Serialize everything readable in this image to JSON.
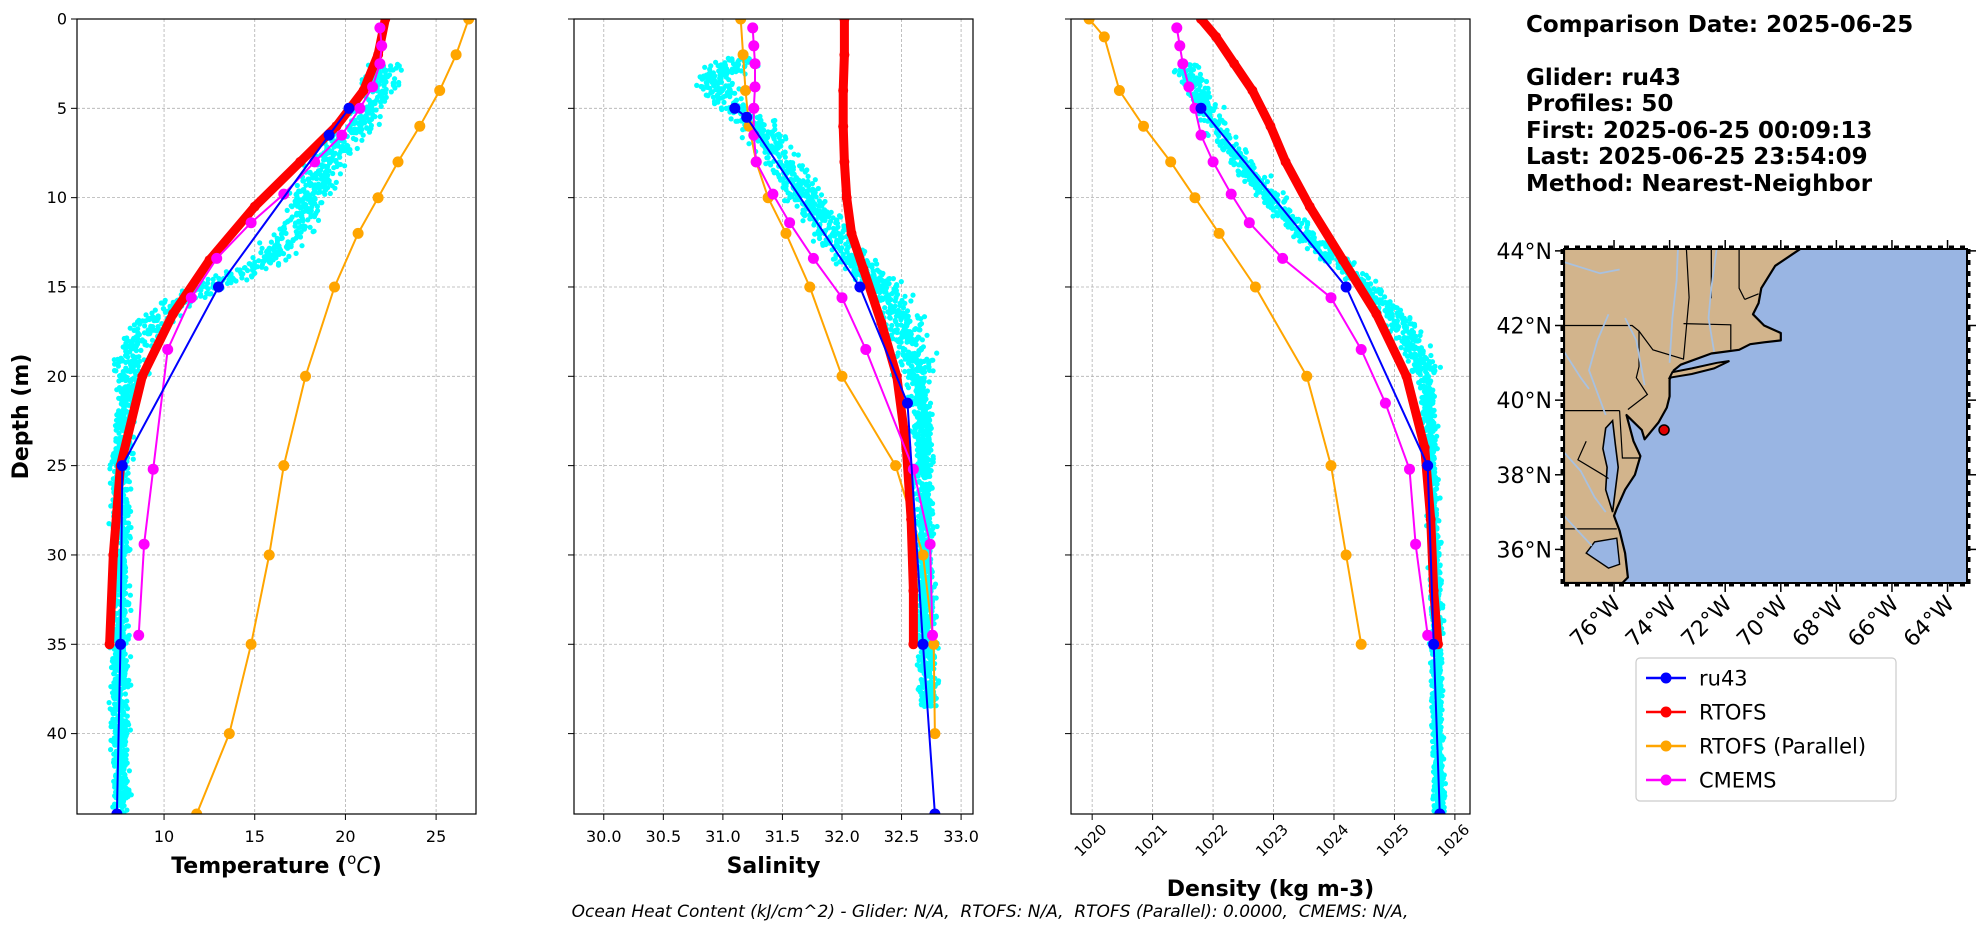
{
  "info": {
    "comparison_date": "Comparison Date: 2025-06-25",
    "glider": "Glider: ru43",
    "profiles": "Profiles: 50",
    "first": "First: 2025-06-25 00:09:13",
    "last": "Last: 2025-06-25 23:54:09",
    "method": "Method: Nearest-Neighbor"
  },
  "footer": "Ocean Heat Content (kJ/cm^2) - Glider: N/A,  RTOFS: N/A,  RTOFS (Parallel): 0.0000,  CMEMS: N/A,",
  "colors": {
    "glider_scatter": "#00ffff",
    "ru43": "#0000ff",
    "RTOFS": "#ff0000",
    "RTOFS (Parallel)": "#ffa500",
    "CMEMS": "#ff00ff",
    "land": "#d2b48c",
    "ocean": "#99b5e3",
    "rivers": "#a8c1e0"
  },
  "chart_data": [
    {
      "type": "line",
      "xlabel": "Temperature (°C)",
      "ylabel": "Depth (m)",
      "xlim": [
        5.2,
        27.2
      ],
      "ylim": [
        44.5,
        0
      ],
      "xticks": [
        10,
        15,
        20,
        25
      ],
      "yticks": [
        0,
        5,
        10,
        15,
        20,
        25,
        30,
        35,
        40
      ],
      "grid": true,
      "scatter_depth_range": [
        2.5,
        44.5
      ],
      "scatter": [
        [
          22.2,
          3
        ],
        [
          21.8,
          4
        ],
        [
          21.2,
          5
        ],
        [
          20.6,
          6
        ],
        [
          19.8,
          7
        ],
        [
          19.0,
          8
        ],
        [
          18.4,
          9
        ],
        [
          18.0,
          10
        ],
        [
          17.6,
          11
        ],
        [
          17.0,
          12
        ],
        [
          16.2,
          13
        ],
        [
          14.8,
          14
        ],
        [
          12.6,
          15
        ],
        [
          10.6,
          16
        ],
        [
          9.2,
          17
        ],
        [
          8.6,
          18
        ],
        [
          8.2,
          19
        ],
        [
          8.0,
          20
        ],
        [
          7.8,
          22
        ],
        [
          7.7,
          24
        ],
        [
          7.6,
          26
        ],
        [
          7.6,
          30
        ],
        [
          7.6,
          34
        ],
        [
          7.6,
          38
        ],
        [
          7.6,
          44
        ]
      ],
      "series": [
        {
          "name": "ru43",
          "x": [
            20.2,
            19.1,
            13.0,
            7.7,
            7.6,
            7.4
          ],
          "y": [
            5,
            6.5,
            15,
            25,
            35,
            44.5
          ]
        },
        {
          "name": "RTOFS",
          "x": [
            22.2,
            21.8,
            21.0,
            19.5,
            17.5,
            15.0,
            12.5,
            10.5,
            8.8,
            7.6,
            7.2,
            7.0
          ],
          "y": [
            0,
            2,
            4,
            6,
            8,
            10.5,
            13.5,
            16.5,
            20,
            25,
            30,
            35
          ]
        },
        {
          "name": "RTOFS (Parallel)",
          "x": [
            26.8,
            26.1,
            25.2,
            24.1,
            22.9,
            21.8,
            20.7,
            19.4,
            17.8,
            16.6,
            15.8,
            14.8,
            13.6,
            11.8
          ],
          "y": [
            0,
            2,
            4,
            6,
            8,
            10,
            12,
            15,
            20,
            25,
            30,
            35,
            40,
            44.5
          ]
        },
        {
          "name": "CMEMS",
          "x": [
            21.9,
            22.0,
            21.9,
            21.5,
            20.8,
            19.8,
            18.3,
            16.6,
            14.8,
            12.9,
            11.5,
            10.2,
            9.4,
            8.9,
            8.6
          ],
          "y": [
            0.5,
            1.5,
            2.5,
            3.8,
            5,
            6.5,
            8,
            9.8,
            11.4,
            13.4,
            15.6,
            18.5,
            25.2,
            29.4,
            34.5
          ]
        }
      ]
    },
    {
      "type": "line",
      "xlabel": "Salinity",
      "xlim": [
        29.75,
        33.1
      ],
      "ylim": [
        44.5,
        0
      ],
      "xticks": [
        30.0,
        30.5,
        31.0,
        31.5,
        32.0,
        32.5,
        33.0
      ],
      "yticks": [
        0,
        5,
        10,
        15,
        20,
        25,
        30,
        35,
        40
      ],
      "grid": true,
      "scatter_depth_range": [
        2.2,
        38.5
      ],
      "scatter": [
        [
          31.1,
          2.5
        ],
        [
          30.9,
          3.5
        ],
        [
          31.0,
          4.5
        ],
        [
          31.2,
          5.5
        ],
        [
          31.35,
          6.5
        ],
        [
          31.45,
          7.5
        ],
        [
          31.55,
          8.5
        ],
        [
          31.65,
          9.5
        ],
        [
          31.75,
          10.5
        ],
        [
          31.85,
          11.5
        ],
        [
          31.95,
          12.5
        ],
        [
          32.1,
          13.5
        ],
        [
          32.25,
          14.5
        ],
        [
          32.4,
          15.5
        ],
        [
          32.5,
          16.5
        ],
        [
          32.58,
          18
        ],
        [
          32.63,
          20
        ],
        [
          32.67,
          22
        ],
        [
          32.69,
          25
        ],
        [
          32.7,
          28
        ],
        [
          32.7,
          31
        ],
        [
          32.7,
          34
        ],
        [
          32.72,
          37
        ]
      ],
      "series": [
        {
          "name": "ru43",
          "x": [
            31.1,
            31.2,
            32.15,
            32.55,
            32.68,
            32.78
          ],
          "y": [
            5,
            5.5,
            15,
            21.5,
            35,
            44.5
          ]
        },
        {
          "name": "RTOFS",
          "x": [
            32.02,
            32.02,
            32.01,
            32.01,
            32.02,
            32.04,
            32.08,
            32.18,
            32.33,
            32.46,
            32.54,
            32.58,
            32.6,
            32.6
          ],
          "y": [
            0,
            2,
            4,
            6,
            8,
            10,
            12,
            14,
            17,
            20,
            24,
            28,
            32,
            35
          ]
        },
        {
          "name": "RTOFS (Parallel)",
          "x": [
            31.15,
            31.17,
            31.19,
            31.22,
            31.28,
            31.38,
            31.53,
            31.73,
            32.0,
            32.45,
            32.68,
            32.77,
            32.78
          ],
          "y": [
            0,
            2,
            4,
            6,
            8,
            10,
            12,
            15,
            20,
            25,
            30,
            35,
            40
          ]
        },
        {
          "name": "CMEMS",
          "x": [
            31.25,
            31.26,
            31.27,
            31.27,
            31.26,
            31.26,
            31.28,
            31.42,
            31.56,
            31.76,
            32.0,
            32.2,
            32.6,
            32.74,
            32.76
          ],
          "y": [
            0.5,
            1.5,
            2.5,
            3.8,
            5,
            6.5,
            8,
            9.8,
            11.4,
            13.4,
            15.6,
            18.5,
            25.2,
            29.4,
            34.5
          ]
        }
      ]
    },
    {
      "type": "line",
      "xlabel": "Density (kg m-3)",
      "xlim": [
        1019.65,
        1026.25
      ],
      "ylim": [
        44.5,
        0
      ],
      "xticks": [
        1020,
        1021,
        1022,
        1023,
        1024,
        1025,
        1026
      ],
      "yticks": [
        0,
        5,
        10,
        15,
        20,
        25,
        30,
        35,
        40
      ],
      "grid": true,
      "scatter_depth_range": [
        2.5,
        44.5
      ],
      "scatter": [
        [
          1021.6,
          3
        ],
        [
          1021.75,
          4
        ],
        [
          1021.9,
          5
        ],
        [
          1022.05,
          6
        ],
        [
          1022.25,
          7
        ],
        [
          1022.45,
          8
        ],
        [
          1022.7,
          9
        ],
        [
          1022.95,
          10
        ],
        [
          1023.2,
          11
        ],
        [
          1023.5,
          12
        ],
        [
          1023.85,
          13
        ],
        [
          1024.2,
          14
        ],
        [
          1024.55,
          15
        ],
        [
          1024.85,
          16
        ],
        [
          1025.1,
          17
        ],
        [
          1025.3,
          18
        ],
        [
          1025.45,
          19
        ],
        [
          1025.55,
          21
        ],
        [
          1025.6,
          24
        ],
        [
          1025.65,
          28
        ],
        [
          1025.68,
          32
        ],
        [
          1025.7,
          36
        ],
        [
          1025.72,
          40
        ],
        [
          1025.74,
          44
        ]
      ],
      "series": [
        {
          "name": "ru43",
          "x": [
            1021.8,
            1024.2,
            1025.55,
            1025.65,
            1025.75
          ],
          "y": [
            5,
            15,
            25,
            35,
            44.5
          ]
        },
        {
          "name": "RTOFS",
          "x": [
            1021.8,
            1022.05,
            1022.35,
            1022.65,
            1022.95,
            1023.2,
            1023.6,
            1024.15,
            1024.7,
            1025.2,
            1025.5,
            1025.6,
            1025.65,
            1025.72
          ],
          "y": [
            0,
            1,
            2.5,
            4,
            6,
            8,
            10.5,
            13.5,
            16.5,
            20,
            24,
            28,
            32,
            35
          ]
        },
        {
          "name": "RTOFS (Parallel)",
          "x": [
            1019.95,
            1020.2,
            1020.45,
            1020.85,
            1021.3,
            1021.7,
            1022.1,
            1022.7,
            1023.55,
            1023.95,
            1024.2,
            1024.45
          ],
          "y": [
            0,
            1,
            4,
            6,
            8,
            10,
            12,
            15,
            20,
            25,
            30,
            35
          ]
        },
        {
          "name": "CMEMS",
          "x": [
            1021.4,
            1021.45,
            1021.5,
            1021.6,
            1021.7,
            1021.8,
            1022.0,
            1022.3,
            1022.6,
            1023.15,
            1023.95,
            1024.45,
            1024.85,
            1025.25,
            1025.35,
            1025.55,
            1025.65
          ],
          "y": [
            0.5,
            1.5,
            2.5,
            3.8,
            5,
            6.5,
            8,
            9.8,
            11.4,
            13.4,
            15.6,
            18.5,
            21.5,
            25.2,
            29.4,
            34.5,
            35
          ]
        }
      ]
    },
    {
      "type": "map",
      "lon_range": [
        -77.8,
        -63.3
      ],
      "lat_range": [
        35.1,
        44.05
      ],
      "lon_ticks": [
        "76°W",
        "74°W",
        "72°W",
        "70°W",
        "68°W",
        "66°W",
        "64°W"
      ],
      "lon_tick_values": [
        -76,
        -74,
        -72,
        -70,
        -68,
        -66,
        -64
      ],
      "lat_ticks": [
        "44°N",
        "42°N",
        "40°N",
        "38°N",
        "36°N"
      ],
      "lat_tick_values": [
        44,
        42,
        40,
        38,
        36
      ],
      "glider_position": {
        "lon": -74.2,
        "lat": 39.2
      }
    }
  ],
  "legend": {
    "placement": "below-map",
    "entries": [
      {
        "label": "ru43",
        "color": "#0000ff"
      },
      {
        "label": "RTOFS",
        "color": "#ff0000"
      },
      {
        "label": "RTOFS (Parallel)",
        "color": "#ffa500"
      },
      {
        "label": "CMEMS",
        "color": "#ff00ff"
      }
    ]
  }
}
